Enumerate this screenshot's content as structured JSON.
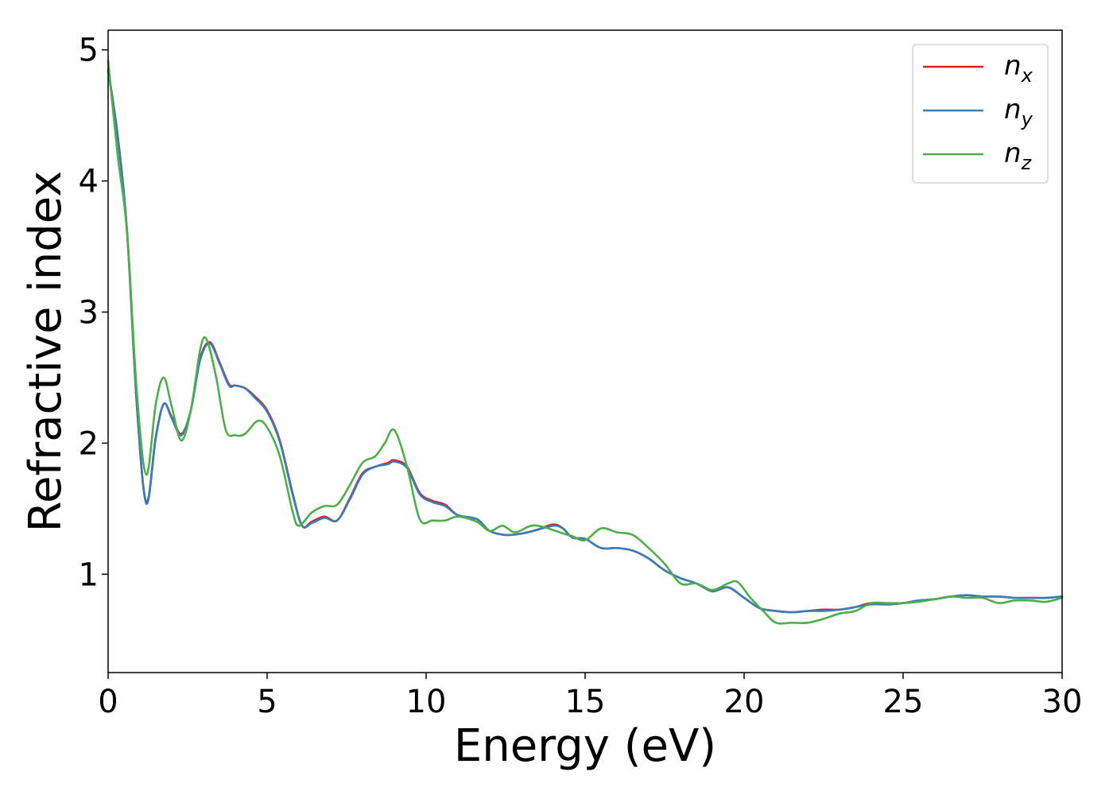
{
  "chart_data": {
    "type": "line",
    "xlabel": "Energy (eV)",
    "ylabel": "Refractive index",
    "xlim": [
      0,
      30
    ],
    "ylim": [
      0.25,
      5.15
    ],
    "xticks": [
      0,
      5,
      10,
      15,
      20,
      25,
      30
    ],
    "yticks": [
      1,
      2,
      3,
      4,
      5
    ],
    "grid": false,
    "legend_position": "top-right",
    "series": [
      {
        "name": "n_x",
        "label_main": "n",
        "label_sub": "x",
        "color": "#e41a1c",
        "x": [
          0,
          0.3,
          0.6,
          0.9,
          1.2,
          1.5,
          1.75,
          2.0,
          2.3,
          2.6,
          2.9,
          3.2,
          3.5,
          3.8,
          4.0,
          4.3,
          4.6,
          5.0,
          5.4,
          5.8,
          6.1,
          6.4,
          6.8,
          7.2,
          7.6,
          8.0,
          8.4,
          8.8,
          9.0,
          9.4,
          9.8,
          10.2,
          10.6,
          11.0,
          11.6,
          12.0,
          12.5,
          13.0,
          13.5,
          14.0,
          14.3,
          14.6,
          15.0,
          15.5,
          16.0,
          16.5,
          17.0,
          17.5,
          18.0,
          18.5,
          19.0,
          19.5,
          20.0,
          20.5,
          21.0,
          21.5,
          22.0,
          22.5,
          23.0,
          23.5,
          24.0,
          24.5,
          25.0,
          25.5,
          26.0,
          26.5,
          27.0,
          27.5,
          28.0,
          28.5,
          29.0,
          29.5,
          30.0
        ],
        "values": [
          4.85,
          4.35,
          3.6,
          2.3,
          1.55,
          2.05,
          2.3,
          2.2,
          2.07,
          2.25,
          2.65,
          2.77,
          2.62,
          2.45,
          2.44,
          2.42,
          2.36,
          2.25,
          2.02,
          1.62,
          1.37,
          1.4,
          1.44,
          1.41,
          1.58,
          1.77,
          1.82,
          1.85,
          1.87,
          1.82,
          1.62,
          1.56,
          1.53,
          1.45,
          1.42,
          1.33,
          1.3,
          1.31,
          1.34,
          1.38,
          1.35,
          1.28,
          1.27,
          1.2,
          1.2,
          1.18,
          1.12,
          1.03,
          0.97,
          0.93,
          0.87,
          0.9,
          0.82,
          0.74,
          0.72,
          0.71,
          0.72,
          0.73,
          0.73,
          0.75,
          0.78,
          0.77,
          0.78,
          0.8,
          0.81,
          0.83,
          0.84,
          0.83,
          0.83,
          0.82,
          0.82,
          0.82,
          0.83
        ]
      },
      {
        "name": "n_y",
        "label_main": "n",
        "label_sub": "y",
        "color": "#377eb8",
        "x": [
          0,
          0.3,
          0.6,
          0.9,
          1.2,
          1.5,
          1.75,
          2.0,
          2.3,
          2.6,
          2.9,
          3.2,
          3.5,
          3.8,
          4.0,
          4.3,
          4.6,
          5.0,
          5.4,
          5.8,
          6.1,
          6.4,
          6.8,
          7.2,
          7.6,
          8.0,
          8.4,
          8.8,
          9.0,
          9.4,
          9.8,
          10.2,
          10.6,
          11.0,
          11.6,
          12.0,
          12.5,
          13.0,
          13.5,
          14.0,
          14.3,
          14.6,
          15.0,
          15.5,
          16.0,
          16.5,
          17.0,
          17.5,
          18.0,
          18.5,
          19.0,
          19.5,
          20.0,
          20.5,
          21.0,
          21.5,
          22.0,
          22.5,
          23.0,
          23.5,
          24.0,
          24.5,
          25.0,
          25.5,
          26.0,
          26.5,
          27.0,
          27.5,
          28.0,
          28.5,
          29.0,
          29.5,
          30.0
        ],
        "values": [
          4.84,
          4.34,
          3.6,
          2.3,
          1.54,
          2.04,
          2.3,
          2.19,
          2.06,
          2.25,
          2.64,
          2.76,
          2.61,
          2.44,
          2.44,
          2.42,
          2.35,
          2.24,
          2.01,
          1.61,
          1.37,
          1.39,
          1.43,
          1.41,
          1.57,
          1.76,
          1.82,
          1.84,
          1.86,
          1.81,
          1.61,
          1.55,
          1.52,
          1.45,
          1.42,
          1.33,
          1.3,
          1.31,
          1.34,
          1.37,
          1.35,
          1.28,
          1.27,
          1.2,
          1.2,
          1.18,
          1.12,
          1.03,
          0.97,
          0.93,
          0.87,
          0.9,
          0.82,
          0.74,
          0.72,
          0.71,
          0.72,
          0.72,
          0.73,
          0.75,
          0.77,
          0.77,
          0.78,
          0.8,
          0.81,
          0.83,
          0.84,
          0.83,
          0.83,
          0.82,
          0.82,
          0.82,
          0.83
        ]
      },
      {
        "name": "n_z",
        "label_main": "n",
        "label_sub": "z",
        "color": "#4daf4a",
        "x": [
          0,
          0.3,
          0.6,
          0.9,
          1.2,
          1.5,
          1.75,
          2.0,
          2.3,
          2.6,
          2.9,
          3.1,
          3.4,
          3.7,
          4.0,
          4.3,
          4.7,
          5.0,
          5.4,
          5.8,
          6.0,
          6.4,
          6.8,
          7.2,
          7.6,
          8.0,
          8.4,
          8.7,
          9.0,
          9.4,
          9.8,
          10.2,
          10.6,
          11.0,
          11.6,
          12.0,
          12.4,
          12.8,
          13.3,
          13.7,
          14.2,
          14.6,
          15.0,
          15.5,
          16.0,
          16.5,
          17.0,
          17.5,
          18.0,
          18.5,
          19.0,
          19.5,
          19.8,
          20.2,
          20.6,
          21.0,
          21.5,
          22.0,
          22.5,
          23.0,
          23.5,
          24.0,
          24.5,
          25.0,
          25.5,
          26.0,
          26.5,
          27.0,
          27.5,
          28.0,
          28.5,
          29.0,
          29.5,
          30.0
        ],
        "values": [
          4.92,
          4.2,
          3.6,
          2.4,
          1.76,
          2.3,
          2.5,
          2.28,
          2.02,
          2.25,
          2.72,
          2.79,
          2.5,
          2.1,
          2.06,
          2.07,
          2.17,
          2.12,
          1.9,
          1.48,
          1.37,
          1.47,
          1.52,
          1.53,
          1.68,
          1.85,
          1.9,
          2.0,
          2.1,
          1.82,
          1.42,
          1.41,
          1.41,
          1.44,
          1.4,
          1.33,
          1.37,
          1.32,
          1.37,
          1.36,
          1.32,
          1.29,
          1.26,
          1.35,
          1.32,
          1.3,
          1.2,
          1.08,
          0.93,
          0.93,
          0.88,
          0.93,
          0.94,
          0.82,
          0.72,
          0.63,
          0.63,
          0.63,
          0.66,
          0.7,
          0.72,
          0.78,
          0.78,
          0.78,
          0.79,
          0.81,
          0.83,
          0.82,
          0.82,
          0.78,
          0.8,
          0.8,
          0.79,
          0.82
        ]
      }
    ]
  }
}
